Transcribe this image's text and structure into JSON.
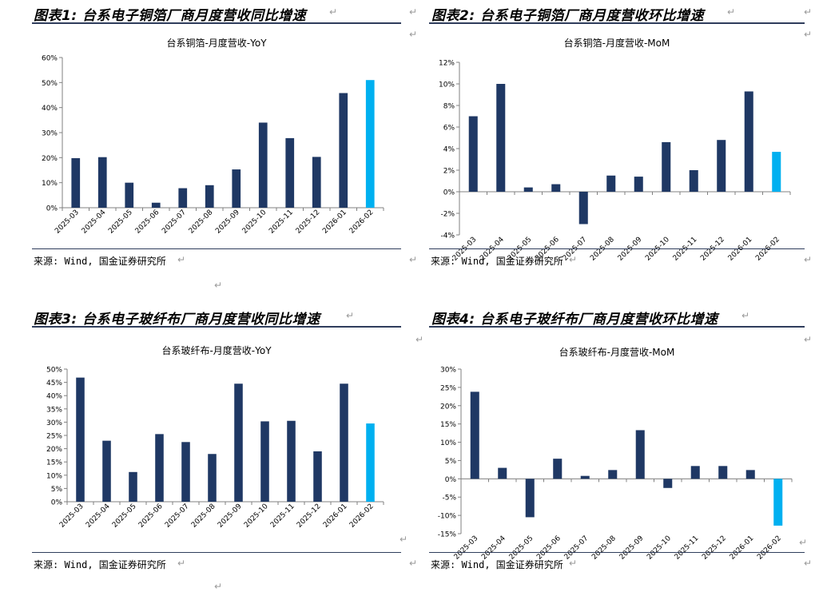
{
  "figures": [
    {
      "title": "图表1: 台系电子铜箔厂商月度营收同比增速",
      "chart_title": "台系铜箔-月度营收-YoY",
      "source": "来源: Wind, 国金证券研究所"
    },
    {
      "title": "图表2: 台系电子铜箔厂商月度营收环比增速",
      "chart_title": "台系铜箔-月度营收-MoM",
      "source": "来源: Wind, 国金证券研究所"
    },
    {
      "title": "图表3: 台系电子玻纤布厂商月度营收同比增速",
      "chart_title": "台系玻纤布-月度营收-YoY",
      "source": "来源: Wind, 国金证券研究所"
    },
    {
      "title": "图表4: 台系电子玻纤布厂商月度营收环比增速",
      "chart_title": "台系玻纤布-月度营收-MoM",
      "source": "来源: Wind, 国金证券研究所"
    }
  ],
  "colors": {
    "bar": "#1f3864",
    "highlight": "#00b0f0",
    "rule": "#2f3d5c"
  },
  "chart_data": [
    {
      "type": "bar",
      "title": "台系铜箔-月度营收-YoY",
      "categories": [
        "2025-03",
        "2025-04",
        "2025-05",
        "2025-06",
        "2025-07",
        "2025-08",
        "2025-09",
        "2025-10",
        "2025-11",
        "2025-12",
        "2026-01",
        "2026-02"
      ],
      "values": [
        19.8,
        20.2,
        10.0,
        2.0,
        7.8,
        9.0,
        15.3,
        34.0,
        27.8,
        20.3,
        45.8,
        51.0
      ],
      "ylim": [
        0,
        60
      ],
      "yticks": [
        0,
        10,
        20,
        30,
        40,
        50,
        60
      ],
      "ytick_labels": [
        "0%",
        "10%",
        "20%",
        "30%",
        "40%",
        "50%",
        "60%"
      ],
      "highlight_last": true
    },
    {
      "type": "bar",
      "title": "台系铜箔-月度营收-MoM",
      "categories": [
        "2025-03",
        "2025-04",
        "2025-05",
        "2025-06",
        "2025-07",
        "2025-08",
        "2025-09",
        "2025-10",
        "2025-11",
        "2025-12",
        "2026-01",
        "2026-02"
      ],
      "values": [
        7.0,
        10.0,
        0.4,
        0.7,
        -3.0,
        1.5,
        1.4,
        4.6,
        2.0,
        4.8,
        9.3,
        3.7
      ],
      "ylim": [
        -4,
        12
      ],
      "yticks": [
        -4,
        -2,
        0,
        2,
        4,
        6,
        8,
        10,
        12
      ],
      "ytick_labels": [
        "-4%",
        "-2%",
        "0%",
        "2%",
        "4%",
        "6%",
        "8%",
        "10%",
        "12%"
      ],
      "highlight_last": true
    },
    {
      "type": "bar",
      "title": "台系玻纤布-月度营收-YoY",
      "categories": [
        "2025-03",
        "2025-04",
        "2025-05",
        "2025-06",
        "2025-07",
        "2025-08",
        "2025-09",
        "2025-10",
        "2025-11",
        "2025-12",
        "2026-01",
        "2026-02"
      ],
      "values": [
        46.8,
        23.0,
        11.2,
        25.5,
        22.5,
        18.0,
        44.5,
        30.3,
        30.5,
        19.0,
        44.5,
        29.5
      ],
      "ylim": [
        0,
        50
      ],
      "yticks": [
        0,
        5,
        10,
        15,
        20,
        25,
        30,
        35,
        40,
        45,
        50
      ],
      "ytick_labels": [
        "0%",
        "5%",
        "10%",
        "15%",
        "20%",
        "25%",
        "30%",
        "35%",
        "40%",
        "45%",
        "50%"
      ],
      "highlight_last": true
    },
    {
      "type": "bar",
      "title": "台系玻纤布-月度营收-MoM",
      "categories": [
        "2025-03",
        "2025-04",
        "2025-05",
        "2025-06",
        "2025-07",
        "2025-08",
        "2025-09",
        "2025-10",
        "2025-11",
        "2025-12",
        "2026-01",
        "2026-02"
      ],
      "values": [
        23.8,
        3.0,
        -10.5,
        5.5,
        0.8,
        2.4,
        13.3,
        -2.5,
        3.5,
        3.5,
        2.4,
        -12.8
      ],
      "ylim": [
        -15,
        30
      ],
      "yticks": [
        -15,
        -10,
        -5,
        0,
        5,
        10,
        15,
        20,
        25,
        30
      ],
      "ytick_labels": [
        "-15%",
        "-10%",
        "-5%",
        "0%",
        "5%",
        "10%",
        "15%",
        "20%",
        "25%",
        "30%"
      ],
      "highlight_last": true
    }
  ]
}
